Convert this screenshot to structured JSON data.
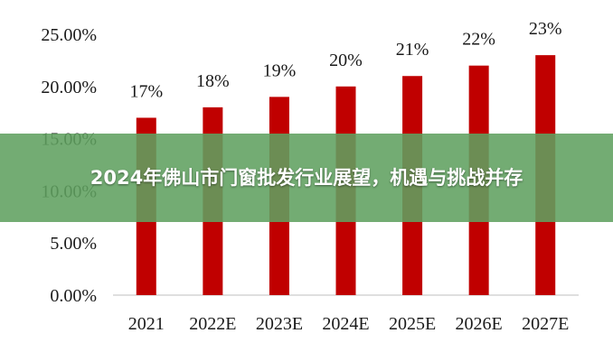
{
  "banner": {
    "title": "2024年佛山市门窗批发行业展望，机遇与挑战并存"
  },
  "colors": {
    "bar": "#c00000",
    "axis": "#bfbfbf",
    "banner_bg": "#60a060",
    "banner_text": "#ffffff"
  },
  "chart_data": {
    "type": "bar",
    "categories": [
      "2021",
      "2022E",
      "2023E",
      "2024E",
      "2025E",
      "2026E",
      "2027E"
    ],
    "values": [
      0.17,
      0.18,
      0.19,
      0.2,
      0.21,
      0.22,
      0.23
    ],
    "data_labels": [
      "17%",
      "18%",
      "19%",
      "20%",
      "21%",
      "22%",
      "23%"
    ],
    "y_ticks": [
      0.0,
      0.05,
      0.1,
      0.15,
      0.2,
      0.25
    ],
    "y_tick_labels": [
      "0.00%",
      "5.00%",
      "10.00%",
      "15.00%",
      "20.00%",
      "25.00%"
    ],
    "ylim": [
      0,
      0.25
    ],
    "grid": false,
    "legend": "none",
    "title": "",
    "xlabel": "",
    "ylabel": ""
  }
}
